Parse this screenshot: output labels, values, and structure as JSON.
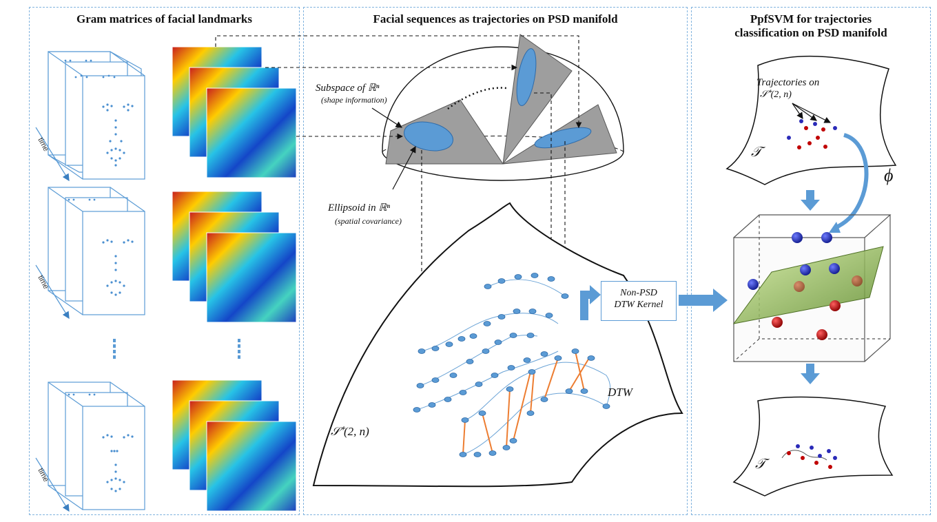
{
  "panels": {
    "left": {
      "title": "Gram matrices of facial landmarks",
      "time_label": "time"
    },
    "middle": {
      "title": "Facial sequences as trajectories on PSD manifold",
      "subspace_label": "Subspace of ℝⁿ",
      "subspace_note": "(shape information)",
      "ellipsoid_label": "Ellipsoid in ℝⁿ",
      "ellipsoid_note": "(spatial covariance)",
      "manifold_label": "𝒮⁺(2, n)",
      "dtw_label": "DTW",
      "kernel_line1": "Non-PSD",
      "kernel_line2": "DTW Kernel"
    },
    "right": {
      "title_line1": "PpfSVM  for trajectories",
      "title_line2": "classification on PSD manifold",
      "trajectories_label": "Trajectories on",
      "trajectories_space": "𝒮⁺(2, n)",
      "tangent_label": "𝒯",
      "phi_label": "ϕ"
    }
  },
  "colors": {
    "panel_border": "#7fb2de",
    "frame_blue": "#5b9bd5",
    "node_fill": "#5b9bd5",
    "dtw_link": "#ed7d31",
    "plane_green": "#8fbc5a",
    "dot_red": "#c00000",
    "dot_blue": "#2a2ab8"
  }
}
